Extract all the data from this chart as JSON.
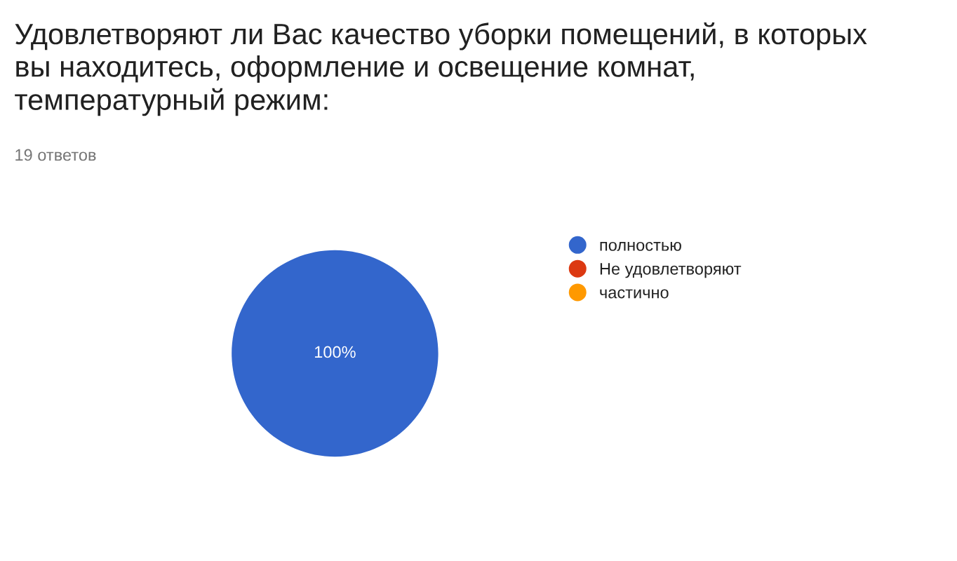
{
  "chart_data": {
    "type": "pie",
    "title": "Удовлетворяют ли Вас качество уборки помещений, в которых вы находитесь, оформление и освещение комнат, температурный режим:",
    "subtitle": "19 ответов",
    "categories": [
      "полностью",
      "Не удовлетворяют",
      "частично"
    ],
    "values": [
      100,
      0,
      0
    ],
    "colors": [
      "#3366cc",
      "#dc3912",
      "#ff9900"
    ],
    "value_labels": [
      "100%",
      null,
      null
    ],
    "legend": "right"
  }
}
